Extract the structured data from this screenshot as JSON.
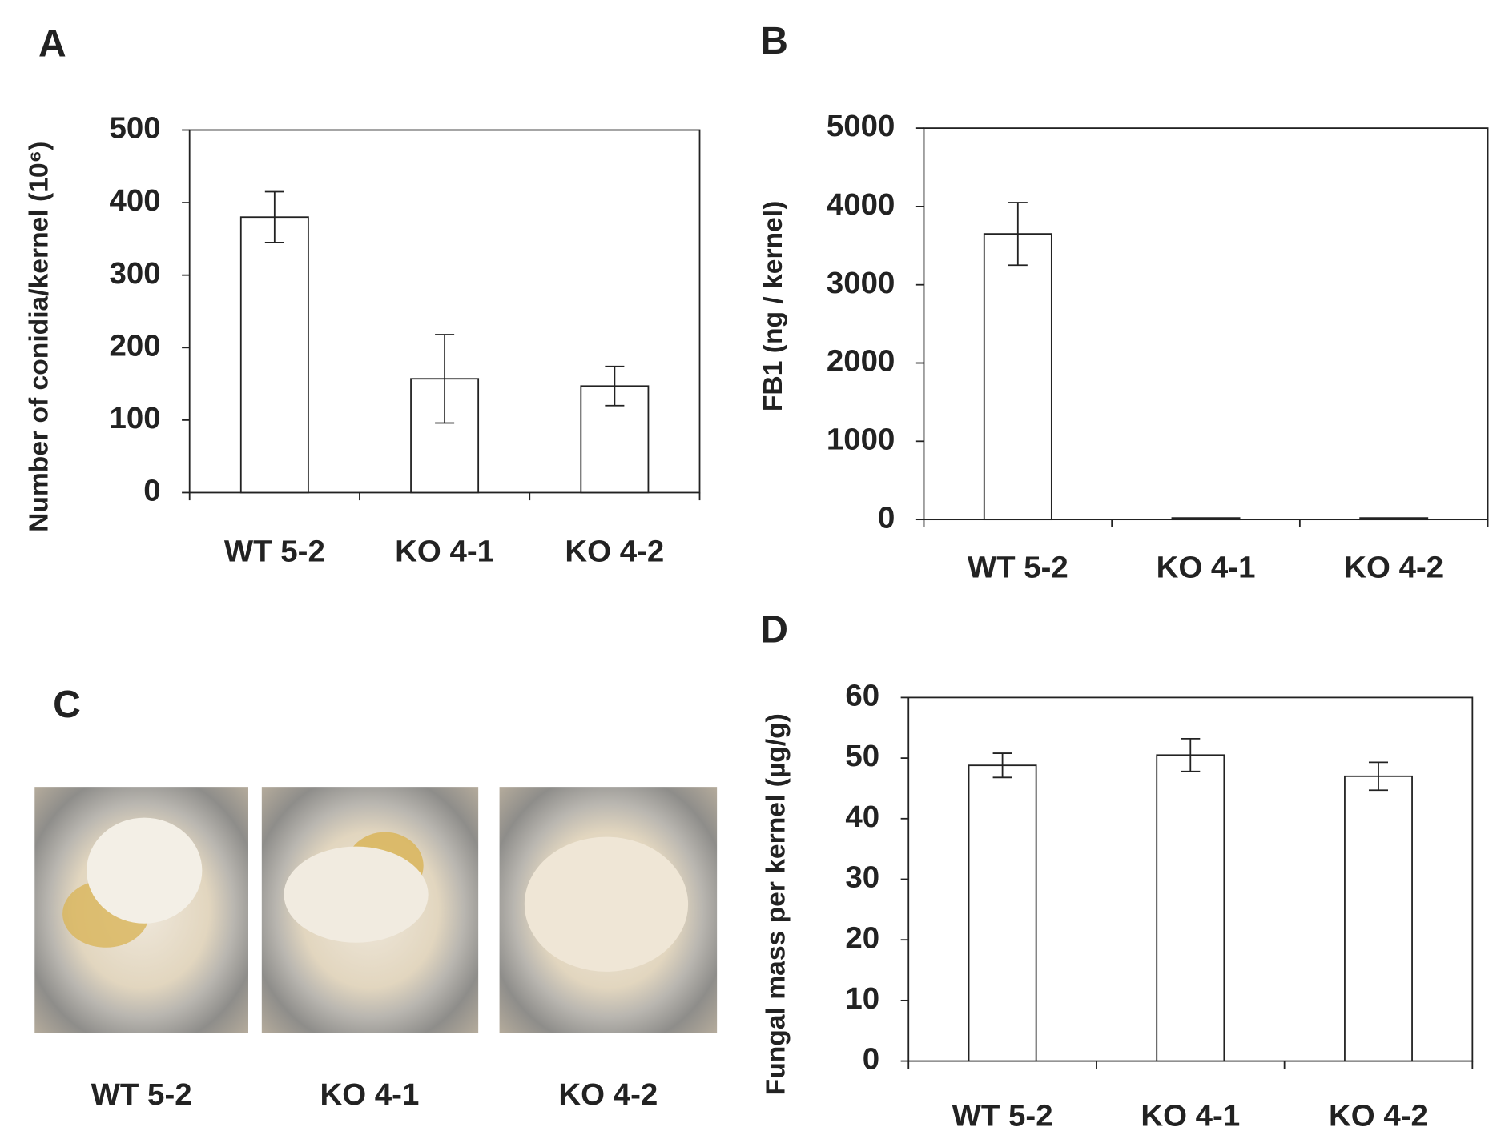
{
  "chart_data": [
    {
      "type": "bar",
      "label": "A",
      "ylabel": "Number of conidia/kernel (10⁶)",
      "categories": [
        "WT 5-2",
        "KO 4-1",
        "KO 4-2"
      ],
      "values": [
        380,
        157,
        147
      ],
      "errors": [
        35,
        61,
        27
      ],
      "color": "#ffffff",
      "ylim": [
        0,
        500
      ],
      "yticks": [
        0,
        100,
        200,
        300,
        400,
        500
      ]
    },
    {
      "type": "bar",
      "label": "B",
      "ylabel": "FB1 (ng / kernel)",
      "categories": [
        "WT 5-2",
        "KO 4-1",
        "KO 4-2"
      ],
      "values": [
        3650,
        20,
        20
      ],
      "errors": [
        400,
        null,
        null
      ],
      "color": "#ffffff",
      "ylim": [
        0,
        5000
      ],
      "yticks": [
        0,
        1000,
        2000,
        3000,
        4000,
        5000
      ]
    },
    {
      "type": "bar",
      "label": "D",
      "ylabel": "Fungal mass per kernel (µg/g)",
      "categories": [
        "WT 5-2",
        "KO 4-1",
        "KO 4-2"
      ],
      "values": [
        48.8,
        50.5,
        47
      ],
      "errors": [
        2,
        2.7,
        2.3
      ],
      "color": "#ffffff",
      "ylim": [
        0,
        60
      ],
      "yticks": [
        0,
        10,
        20,
        30,
        40,
        50,
        60
      ]
    }
  ],
  "photo_panel": {
    "label": "C",
    "captions": [
      "WT 5-2",
      "KO 4-1",
      "KO 4-2"
    ]
  }
}
